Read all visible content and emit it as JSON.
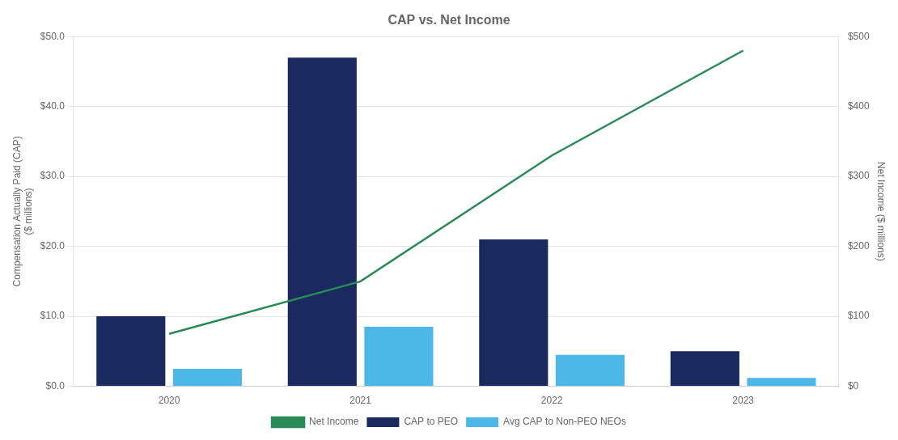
{
  "chart_data": {
    "type": "bar",
    "title": "CAP vs. Net Income",
    "categories": [
      "2020",
      "2021",
      "2022",
      "2023"
    ],
    "series": [
      {
        "name": "CAP to PEO",
        "color": "#1b2a5e",
        "values": [
          10.0,
          47.0,
          21.0,
          5.0
        ]
      },
      {
        "name": "Avg CAP to Non-PEO NEOs",
        "color": "#4db8e8",
        "values": [
          2.5,
          8.5,
          4.5,
          1.2
        ]
      },
      {
        "name": "Net Income",
        "color": "#2a8a57",
        "type": "line",
        "axis": "y2",
        "values": [
          75,
          150,
          330,
          480
        ]
      }
    ],
    "ylabel": [
      "Compensation Actually Paid (CAP)",
      "($ millions)"
    ],
    "y2label": "Net Income ($ millions)",
    "ylim": [
      0,
      50
    ],
    "yticks": [
      {
        "value": 0,
        "label": "$0.0"
      },
      {
        "value": 10,
        "label": "$10.0"
      },
      {
        "value": 20,
        "label": "$20.0"
      },
      {
        "value": 30,
        "label": "$30.0"
      },
      {
        "value": 40,
        "label": "$40.0"
      },
      {
        "value": 50,
        "label": "$50.0"
      }
    ],
    "y2lim": [
      0,
      500
    ],
    "y2ticks": [
      {
        "value": 0,
        "label": "$0"
      },
      {
        "value": 100,
        "label": "$100"
      },
      {
        "value": 200,
        "label": "$200"
      },
      {
        "value": 300,
        "label": "$300"
      },
      {
        "value": 400,
        "label": "$400"
      },
      {
        "value": 500,
        "label": "$500"
      }
    ],
    "grid": true,
    "legend": "bottom"
  }
}
